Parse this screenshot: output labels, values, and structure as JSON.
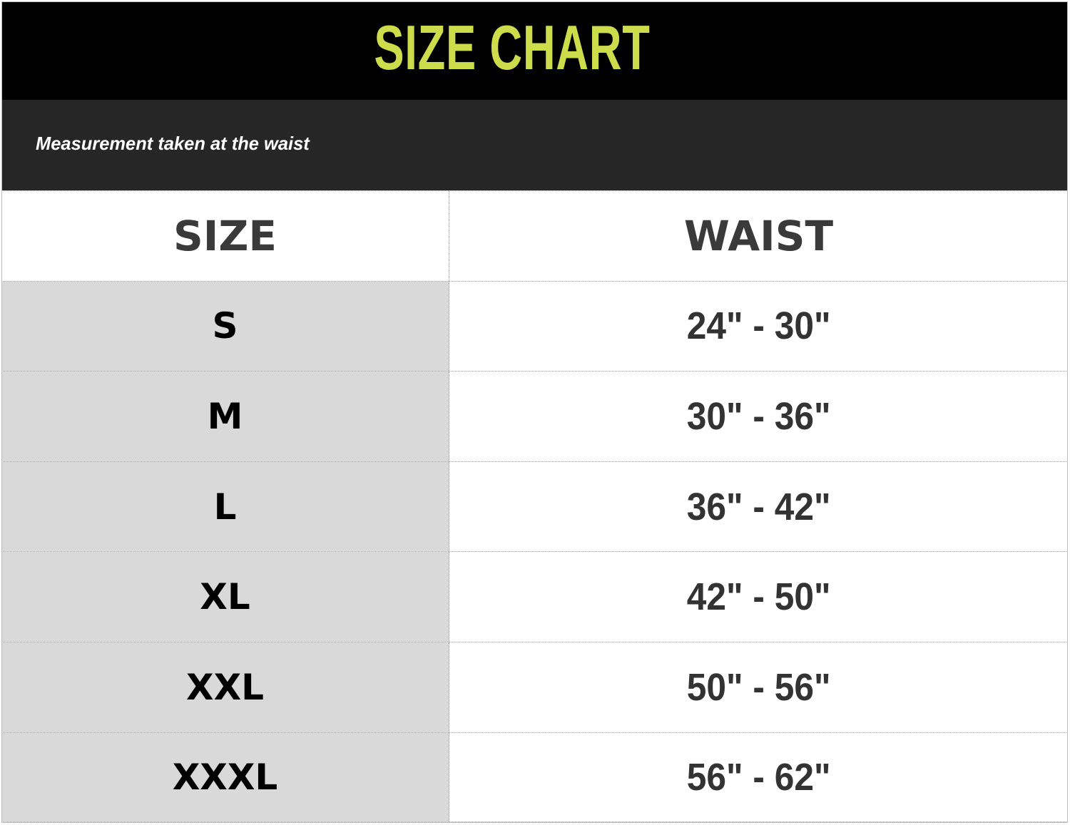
{
  "title": "SIZE CHART",
  "subtitle": "Measurement taken at the waist",
  "colors": {
    "title": "#cddc4a",
    "header_bg": "#000000",
    "subheader_bg": "#262626",
    "size_column_bg": "#d9d9d9"
  },
  "table": {
    "headers": [
      "SIZE",
      "WAIST"
    ],
    "rows": [
      {
        "size": "S",
        "waist": "24\" - 30\""
      },
      {
        "size": "M",
        "waist": "30\" - 36\""
      },
      {
        "size": "L",
        "waist": "36\" - 42\""
      },
      {
        "size": "XL",
        "waist": "42\" - 50\""
      },
      {
        "size": "XXL",
        "waist": "50\" - 56\""
      },
      {
        "size": "XXXL",
        "waist": "56\" - 62\""
      }
    ]
  }
}
